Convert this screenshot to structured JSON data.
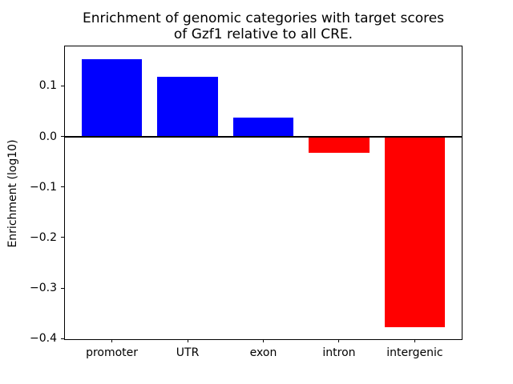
{
  "figure": {
    "kind": "matplotlib-bar-chart"
  },
  "chart_data": {
    "type": "bar",
    "title": "Enrichment of genomic categories with target scores\nof Gzf1 relative to all CRE.",
    "xlabel": "",
    "ylabel": "Enrichment (log10)",
    "categories": [
      "promoter",
      "UTR",
      "exon",
      "intron",
      "intergenic"
    ],
    "values": [
      0.152,
      0.118,
      0.037,
      -0.033,
      -0.378
    ],
    "positive_color": "#0000ff",
    "negative_color": "#ff0000",
    "axis_color": "#000000",
    "background_color": "#ffffff",
    "bar_width": 0.8,
    "xlim": [
      -0.62,
      4.62
    ],
    "ylim": [
      -0.401,
      0.178
    ],
    "yticks": [
      0.1,
      0.0,
      -0.1,
      -0.2,
      -0.3,
      -0.4
    ],
    "ytick_labels": [
      "0.1",
      "0.0",
      "−0.1",
      "−0.2",
      "−0.3",
      "−0.4"
    ],
    "zero_line": true,
    "grid": false,
    "legend": null
  }
}
